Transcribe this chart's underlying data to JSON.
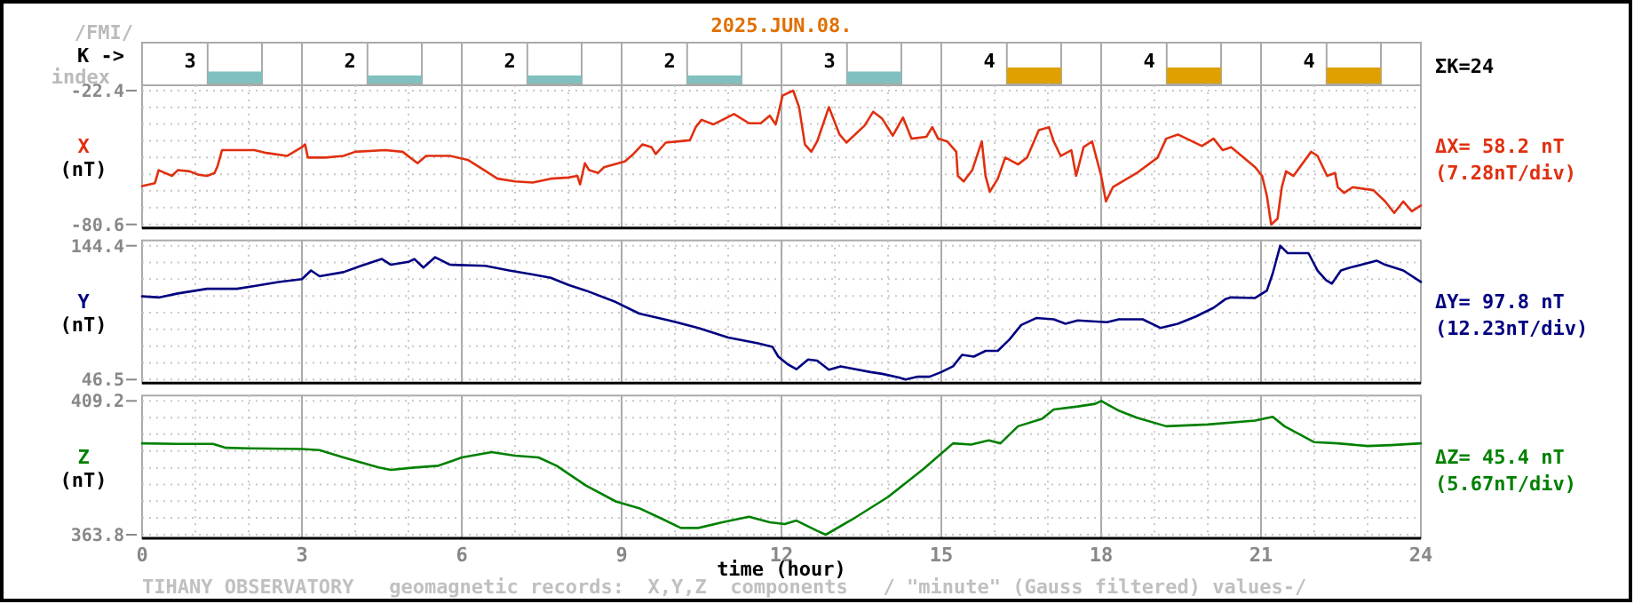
{
  "chart_data": [
    {
      "type": "bar",
      "title": "2025.JUN.08.",
      "ylabel": "K ->",
      "annotations": [
        "/FMI/",
        "index",
        "ΣK=24"
      ],
      "categories": [
        null,
        null,
        null,
        null,
        null,
        null,
        null,
        null
      ],
      "values": [
        3,
        2,
        2,
        2,
        3,
        4,
        4,
        4
      ],
      "colors": [
        "#80c0c0",
        "#80c0c0",
        "#80c0c0",
        "#80c0c0",
        "#80c0c0",
        "#e0a000",
        "#e0a000",
        "#e0a000"
      ],
      "data_labels": true
    },
    {
      "type": "line",
      "ylabel": "X (nT)",
      "annotations": [
        "ΔX= 58.2 nT",
        "(7.28nT/div)"
      ],
      "xlim": [
        0,
        24
      ],
      "xticks": [
        0,
        {
          "value": 1,
          "label": null
        },
        {
          "value": 2,
          "label": null
        },
        3,
        {
          "value": 4,
          "label": null
        },
        {
          "value": 5,
          "label": null
        },
        6,
        {
          "value": 7,
          "label": null
        },
        {
          "value": 8,
          "label": null
        },
        9,
        {
          "value": 10,
          "label": null
        },
        {
          "value": 11,
          "label": null
        },
        12,
        {
          "value": 13,
          "label": null
        },
        {
          "value": 14,
          "label": null
        },
        15,
        {
          "value": 16,
          "label": null
        },
        {
          "value": 17,
          "label": null
        },
        18,
        {
          "value": 19,
          "label": null
        },
        {
          "value": 20,
          "label": null
        },
        21,
        {
          "value": 22,
          "label": null
        },
        {
          "value": 23,
          "label": null
        },
        24
      ],
      "ylim": [
        -80.6,
        -22.4
      ],
      "yticks": [
        -80.6,
        {
          "value": -73.3,
          "label": null
        },
        {
          "value": -66.0,
          "label": null
        },
        {
          "value": -58.8,
          "label": null
        },
        {
          "value": -51.5,
          "label": null
        },
        {
          "value": -44.2,
          "label": null
        },
        {
          "value": -36.9,
          "label": null
        },
        {
          "value": -29.7,
          "label": null
        },
        -22.4
      ],
      "tick_labels": "y",
      "grid": true,
      "x": [
        0,
        0.24,
        0.31,
        0.56,
        0.67,
        0.89,
        1.06,
        1.22,
        1.36,
        1.42,
        1.5,
        1.72,
        2.11,
        2.33,
        2.72,
        3,
        3.06,
        3.11,
        3.44,
        3.78,
        4,
        4.56,
        4.89,
        5.17,
        5.33,
        5.78,
        6.11,
        6.33,
        6.67,
        7,
        7.33,
        7.67,
        8,
        8.17,
        8.22,
        8.31,
        8.39,
        8.56,
        8.67,
        9.06,
        9.22,
        9.39,
        9.56,
        9.64,
        9.83,
        10.28,
        10.39,
        10.5,
        10.72,
        11.11,
        11.39,
        11.61,
        11.78,
        11.89,
        11.94,
        12.02,
        12.22,
        12.33,
        12.44,
        12.56,
        12.67,
        12.89,
        13.09,
        13.22,
        13.56,
        13.72,
        13.89,
        14.09,
        14.28,
        14.44,
        14.72,
        14.83,
        14.94,
        15.11,
        15.28,
        15.31,
        15.42,
        15.58,
        15.76,
        15.83,
        15.91,
        16.06,
        16.2,
        16.44,
        16.61,
        16.83,
        17.02,
        17.11,
        17.24,
        17.44,
        17.53,
        17.67,
        17.83,
        18,
        18.09,
        18.22,
        18.67,
        19.06,
        19.22,
        19.44,
        19.89,
        20.11,
        20.28,
        20.44,
        20.89,
        21.02,
        21.11,
        21.19,
        21.31,
        21.39,
        21.47,
        21.61,
        21.94,
        22.06,
        22.24,
        22.39,
        22.44,
        22.56,
        22.72,
        23.11,
        23.33,
        23.5,
        23.67,
        23.83,
        24
      ],
      "series": [
        {
          "color": "#e03010",
          "values": [
            -63.9,
            -62.7,
            -57.0,
            -59.5,
            -57.0,
            -57.5,
            -59.0,
            -59.5,
            -58.2,
            -55.0,
            -48.3,
            -48.3,
            -48.3,
            -49.5,
            -50.8,
            -47.0,
            -45.8,
            -51.5,
            -51.5,
            -50.8,
            -49.0,
            -48.3,
            -49.0,
            -54.0,
            -50.8,
            -50.8,
            -52.5,
            -55.7,
            -60.7,
            -61.9,
            -62.4,
            -60.7,
            -60.2,
            -59.5,
            -63.2,
            -54.0,
            -57.0,
            -58.2,
            -55.7,
            -53.2,
            -50.0,
            -45.8,
            -47.0,
            -50.0,
            -45.0,
            -44.0,
            -38.3,
            -35.1,
            -37.1,
            -32.6,
            -36.6,
            -36.6,
            -33.3,
            -37.1,
            -32.6,
            -24.6,
            -22.4,
            -29.6,
            -45.8,
            -49.0,
            -44.5,
            -29.6,
            -41.5,
            -45.0,
            -37.6,
            -31.6,
            -34.6,
            -42.0,
            -34.1,
            -43.3,
            -42.5,
            -38.3,
            -43.3,
            -44.5,
            -49.0,
            -59.5,
            -61.9,
            -57.0,
            -44.5,
            -59.5,
            -66.4,
            -60.7,
            -51.5,
            -54.5,
            -51.5,
            -39.6,
            -38.3,
            -44.5,
            -50.8,
            -48.3,
            -59.5,
            -47.0,
            -44.5,
            -59.5,
            -70.6,
            -64.4,
            -58.2,
            -51.5,
            -43.3,
            -41.5,
            -46.5,
            -43.3,
            -48.3,
            -47.0,
            -55.7,
            -59.5,
            -68.2,
            -80.6,
            -78.1,
            -64.4,
            -57.5,
            -59.5,
            -49.0,
            -50.8,
            -59.5,
            -58.2,
            -64.4,
            -66.9,
            -64.4,
            -65.7,
            -70.6,
            -75.6,
            -70.6,
            -74.9,
            -72.4
          ]
        }
      ]
    },
    {
      "type": "line",
      "ylabel": "Y (nT)",
      "annotations": [
        "ΔY= 97.8 nT",
        "(12.23nT/div)"
      ],
      "xlim": [
        0,
        24
      ],
      "xticks": [
        0,
        {
          "value": 1,
          "label": null
        },
        {
          "value": 2,
          "label": null
        },
        3,
        {
          "value": 4,
          "label": null
        },
        {
          "value": 5,
          "label": null
        },
        6,
        {
          "value": 7,
          "label": null
        },
        {
          "value": 8,
          "label": null
        },
        9,
        {
          "value": 10,
          "label": null
        },
        {
          "value": 11,
          "label": null
        },
        12,
        {
          "value": 13,
          "label": null
        },
        {
          "value": 14,
          "label": null
        },
        15,
        {
          "value": 16,
          "label": null
        },
        {
          "value": 17,
          "label": null
        },
        18,
        {
          "value": 19,
          "label": null
        },
        {
          "value": 20,
          "label": null
        },
        21,
        {
          "value": 22,
          "label": null
        },
        {
          "value": 23,
          "label": null
        },
        24
      ],
      "ylim": [
        46.5,
        144.4
      ],
      "yticks": [
        46.5,
        {
          "value": 58.7,
          "label": null
        },
        {
          "value": 71.0,
          "label": null
        },
        {
          "value": 83.2,
          "label": null
        },
        {
          "value": 95.5,
          "label": null
        },
        {
          "value": 107.7,
          "label": null
        },
        {
          "value": 119.9,
          "label": null
        },
        {
          "value": 132.2,
          "label": null
        },
        144.4
      ],
      "tick_labels": "y",
      "grid": true,
      "x": [
        0,
        0.33,
        0.67,
        1.22,
        1.78,
        2.11,
        2.56,
        3,
        3.17,
        3.33,
        3.78,
        4.11,
        4.5,
        4.67,
        5,
        5.11,
        5.28,
        5.5,
        5.78,
        6.44,
        6.89,
        7.33,
        7.67,
        8,
        8.33,
        8.89,
        9.33,
        9.89,
        10.44,
        11,
        11.56,
        11.83,
        11.94,
        12.11,
        12.28,
        12.5,
        12.67,
        12.89,
        13.11,
        13.33,
        13.67,
        13.89,
        14.22,
        14.33,
        14.56,
        14.78,
        15,
        15.22,
        15.39,
        15.61,
        15.83,
        16.06,
        16.28,
        16.5,
        16.78,
        17.11,
        17.33,
        17.56,
        18.11,
        18.33,
        18.78,
        19.11,
        19.44,
        19.78,
        20.11,
        20.33,
        20.44,
        20.89,
        21.11,
        21.22,
        21.36,
        21.5,
        21.89,
        22.06,
        22.22,
        22.33,
        22.5,
        22.67,
        23.17,
        23.33,
        23.67,
        24
      ],
      "series": [
        {
          "color": "#000080",
          "values": [
            107.4,
            106.6,
            109.5,
            112.9,
            112.9,
            115.0,
            117.9,
            120.0,
            126.3,
            122.1,
            125.1,
            129.7,
            134.7,
            130.5,
            132.6,
            134.7,
            128.4,
            136.0,
            130.5,
            129.7,
            126.3,
            123.4,
            120.9,
            115.8,
            111.6,
            103.2,
            94.8,
            89.8,
            84.3,
            77.2,
            73.0,
            70.5,
            63.3,
            57.9,
            54.1,
            61.2,
            60.4,
            53.7,
            56.2,
            54.5,
            52.0,
            50.7,
            47.8,
            46.5,
            48.6,
            48.6,
            52.0,
            56.2,
            64.6,
            63.3,
            67.5,
            67.5,
            75.9,
            86.4,
            91.5,
            90.6,
            87.3,
            89.8,
            88.5,
            90.6,
            90.6,
            84.3,
            87.3,
            92.7,
            99.0,
            105.3,
            106.6,
            106.2,
            111.6,
            124.2,
            144.4,
            139.0,
            139.0,
            126.3,
            119.2,
            116.7,
            126.3,
            128.4,
            133.5,
            130.5,
            126.3,
            117.9
          ]
        }
      ]
    },
    {
      "type": "line",
      "ylabel": "Z (nT)",
      "xlabel": "time (hour)",
      "annotations": [
        "ΔZ= 45.4 nT",
        "(5.67nT/div)",
        "TIHANY OBSERVATORY   geomagnetic records:  X,Y,Z  components   / \"minute\" (Gauss filtered) values-/"
      ],
      "xlim": [
        0,
        24
      ],
      "xticks": [
        0,
        {
          "value": 1,
          "label": null
        },
        {
          "value": 2,
          "label": null
        },
        3,
        {
          "value": 4,
          "label": null
        },
        {
          "value": 5,
          "label": null
        },
        6,
        {
          "value": 7,
          "label": null
        },
        {
          "value": 8,
          "label": null
        },
        9,
        {
          "value": 10,
          "label": null
        },
        {
          "value": 11,
          "label": null
        },
        12,
        {
          "value": 13,
          "label": null
        },
        {
          "value": 14,
          "label": null
        },
        15,
        {
          "value": 16,
          "label": null
        },
        {
          "value": 17,
          "label": null
        },
        18,
        {
          "value": 19,
          "label": null
        },
        {
          "value": 20,
          "label": null
        },
        21,
        {
          "value": 22,
          "label": null
        },
        {
          "value": 23,
          "label": null
        },
        24
      ],
      "ylim": [
        363.8,
        409.2
      ],
      "yticks": [
        363.8,
        {
          "value": 369.5,
          "label": null
        },
        {
          "value": 375.2,
          "label": null
        },
        {
          "value": 380.8,
          "label": null
        },
        {
          "value": 386.5,
          "label": null
        },
        {
          "value": 392.2,
          "label": null
        },
        {
          "value": 397.9,
          "label": null
        },
        {
          "value": 403.5,
          "label": null
        },
        409.2
      ],
      "grid": true,
      "x": [
        0,
        0.67,
        1.33,
        1.56,
        2,
        3,
        3.33,
        3.78,
        4.44,
        4.67,
        5.11,
        5.56,
        6,
        6.56,
        7,
        7.44,
        7.78,
        8.33,
        8.89,
        9.33,
        9.78,
        10.11,
        10.44,
        10.89,
        11.39,
        11.78,
        12.06,
        12.28,
        12.67,
        12.83,
        13.33,
        14,
        14.67,
        15.22,
        15.56,
        15.89,
        16.11,
        16.44,
        16.89,
        17.11,
        17.56,
        17.89,
        18,
        18.33,
        18.67,
        19.22,
        20,
        20.89,
        21.22,
        21.44,
        22,
        22.44,
        23,
        23.44,
        24
      ],
      "series": [
        {
          "color": "#008000",
          "values": [
            394.8,
            394.6,
            394.6,
            393.3,
            393.1,
            392.9,
            392.5,
            390.0,
            386.6,
            385.8,
            386.6,
            387.2,
            390.0,
            391.8,
            390.6,
            390.0,
            387.2,
            380.5,
            375.1,
            372.8,
            369.0,
            366.1,
            366.1,
            368.0,
            369.9,
            368.0,
            367.4,
            368.6,
            365.1,
            363.8,
            369.0,
            376.6,
            386.2,
            394.8,
            394.4,
            395.8,
            394.8,
            400.6,
            403.1,
            406.3,
            407.3,
            408.2,
            409.2,
            405.9,
            403.5,
            400.6,
            401.2,
            402.5,
            403.8,
            400.6,
            395.2,
            394.8,
            393.9,
            394.2,
            394.8
          ]
        }
      ]
    }
  ]
}
